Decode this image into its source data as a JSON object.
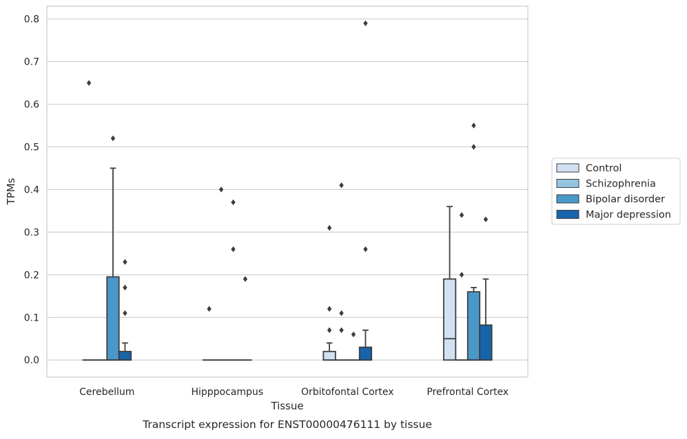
{
  "caption": "Transcript expression for ENST00000476111 by tissue",
  "chart_data": {
    "type": "boxplot",
    "xlabel": "Tissue",
    "ylabel": "TPMs",
    "ylim": [
      -0.04,
      0.83
    ],
    "yticks": [
      0.0,
      0.1,
      0.2,
      0.3,
      0.4,
      0.5,
      0.6,
      0.7,
      0.8
    ],
    "ytick_labels": [
      "0.0",
      "0.1",
      "0.2",
      "0.3",
      "0.4",
      "0.5",
      "0.6",
      "0.7",
      "0.8"
    ],
    "grid": "horizontal",
    "legend_position": "right",
    "categories": [
      "Cerebellum",
      "Hipppocampus",
      "Orbitofontal Cortex",
      "Prefrontal Cortex"
    ],
    "series": [
      {
        "name": "Control",
        "color": "#d0e1f2",
        "boxes": [
          {
            "min": 0,
            "q1": 0,
            "median": 0,
            "q3": 0,
            "max": 0,
            "outliers": [
              0.65
            ]
          },
          {
            "min": 0,
            "q1": 0,
            "median": 0,
            "q3": 0,
            "max": 0,
            "outliers": [
              0.12
            ]
          },
          {
            "min": 0,
            "q1": 0,
            "median": 0,
            "q3": 0.02,
            "max": 0.04,
            "outliers": [
              0.07,
              0.12,
              0.31
            ]
          },
          {
            "min": 0,
            "q1": 0,
            "median": 0.05,
            "q3": 0.19,
            "max": 0.36,
            "outliers": []
          }
        ]
      },
      {
        "name": "Schizophrenia",
        "color": "#94c4df",
        "boxes": [
          {
            "min": 0,
            "q1": 0,
            "median": 0,
            "q3": 0,
            "max": 0,
            "outliers": []
          },
          {
            "min": 0,
            "q1": 0,
            "median": 0,
            "q3": 0,
            "max": 0,
            "outliers": [
              0.4
            ]
          },
          {
            "min": 0,
            "q1": 0,
            "median": 0,
            "q3": 0,
            "max": 0,
            "outliers": [
              0.07,
              0.11,
              0.41
            ]
          },
          {
            "min": 0,
            "q1": 0,
            "median": 0,
            "q3": 0,
            "max": 0,
            "outliers": [
              0.2,
              0.34
            ]
          }
        ]
      },
      {
        "name": "Bipolar disorder",
        "color": "#4a98c9",
        "boxes": [
          {
            "min": 0,
            "q1": 0,
            "median": 0,
            "q3": 0.195,
            "max": 0.45,
            "outliers": [
              0.52
            ]
          },
          {
            "min": 0,
            "q1": 0,
            "median": 0,
            "q3": 0,
            "max": 0,
            "outliers": [
              0.26,
              0.37
            ]
          },
          {
            "min": 0,
            "q1": 0,
            "median": 0,
            "q3": 0,
            "max": 0,
            "outliers": [
              0.06
            ]
          },
          {
            "min": 0,
            "q1": 0,
            "median": 0,
            "q3": 0.16,
            "max": 0.17,
            "outliers": [
              0.5,
              0.55
            ]
          }
        ]
      },
      {
        "name": "Major depression",
        "color": "#1764ab",
        "boxes": [
          {
            "min": 0,
            "q1": 0,
            "median": 0,
            "q3": 0.02,
            "max": 0.04,
            "outliers": [
              0.11,
              0.17,
              0.23
            ]
          },
          {
            "min": 0,
            "q1": 0,
            "median": 0,
            "q3": 0,
            "max": 0,
            "outliers": [
              0.19
            ]
          },
          {
            "min": 0,
            "q1": 0,
            "median": 0,
            "q3": 0.03,
            "max": 0.07,
            "outliers": [
              0.26,
              0.79
            ]
          },
          {
            "min": 0,
            "q1": 0,
            "median": 0,
            "q3": 0.082,
            "max": 0.19,
            "outliers": [
              0.33
            ]
          }
        ]
      }
    ]
  }
}
